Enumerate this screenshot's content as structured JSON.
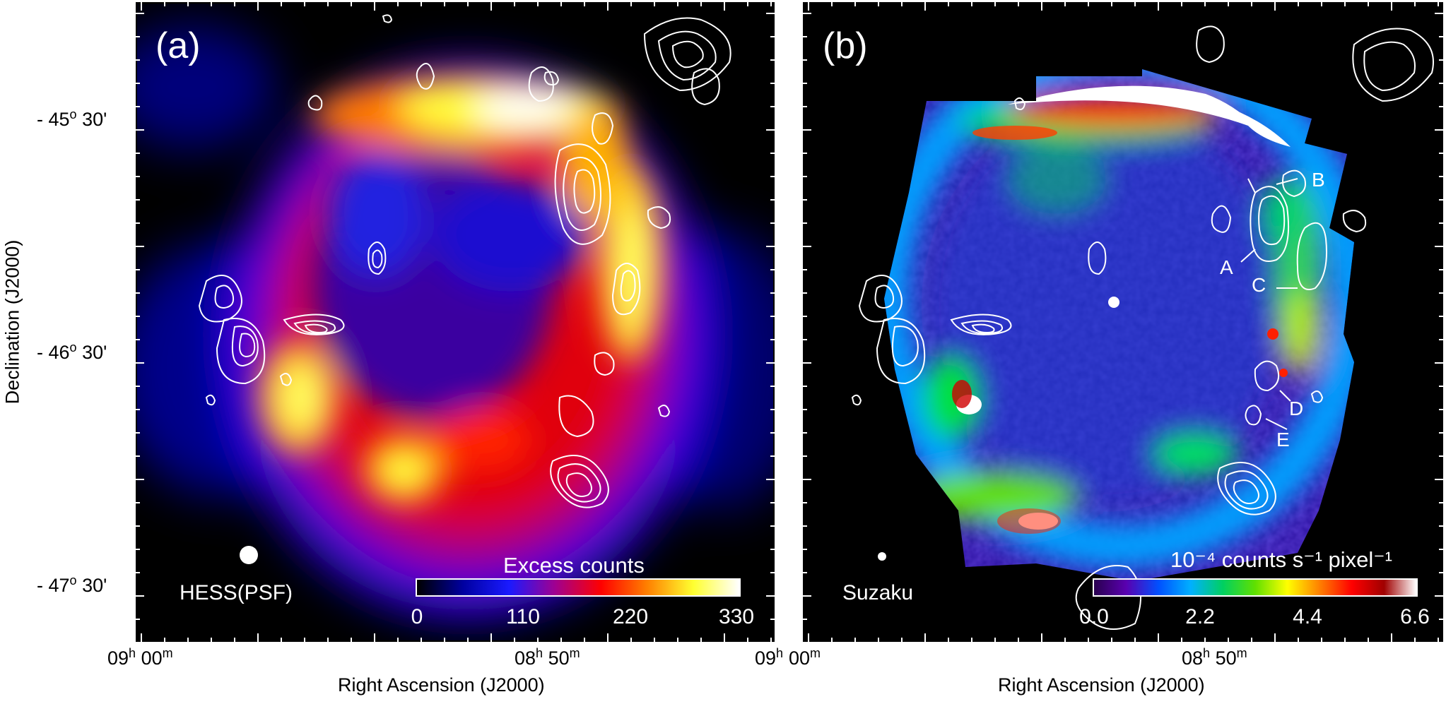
{
  "chart_data": [
    {
      "type": "heatmap",
      "panel": "(a)",
      "instrument_label": "HESS(PSF)",
      "colorbar": {
        "title": "Excess counts",
        "ticks": [
          "0",
          "110",
          "220",
          "330"
        ],
        "range": [
          0,
          330
        ],
        "colors": [
          "#000000",
          "#0000a0",
          "#1a1aff",
          "#a00090",
          "#ff0000",
          "#ff8000",
          "#ffff30",
          "#ffffff"
        ]
      },
      "xlabel": "Right Ascension (J2000)",
      "ylabel": "Declination (J2000)",
      "xticks": [
        {
          "h": "09",
          "m": "00"
        },
        {
          "h": "08",
          "m": "50"
        },
        {
          "h": "09",
          "m": ""
        }
      ],
      "yticks": [
        {
          "deg": "- 45",
          "min": "30'"
        },
        {
          "deg": "- 46",
          "min": "30'"
        },
        {
          "deg": "- 47",
          "min": "30'"
        }
      ],
      "contours": "white radio contours"
    },
    {
      "type": "heatmap",
      "panel": "(b)",
      "instrument_label": "Suzaku",
      "colorbar": {
        "title": "10⁻⁴ counts s⁻¹ pixel⁻¹",
        "ticks": [
          "0.0",
          "2.2",
          "4.4",
          "6.6"
        ],
        "range": [
          0.0,
          6.6
        ],
        "colors": [
          "#2a0050",
          "#5a00b0",
          "#0050ff",
          "#00b0ff",
          "#00d060",
          "#60e000",
          "#ffff00",
          "#ff8000",
          "#ff0000",
          "#a00000",
          "#ffffff"
        ]
      },
      "xlabel": "Right Ascension (J2000)",
      "xticks": [
        {
          "h": "09",
          "m": "00"
        },
        {
          "h": "08",
          "m": "50"
        }
      ],
      "source_labels": [
        "A",
        "B",
        "C",
        "D",
        "E"
      ],
      "contours": "white radio contours"
    }
  ]
}
